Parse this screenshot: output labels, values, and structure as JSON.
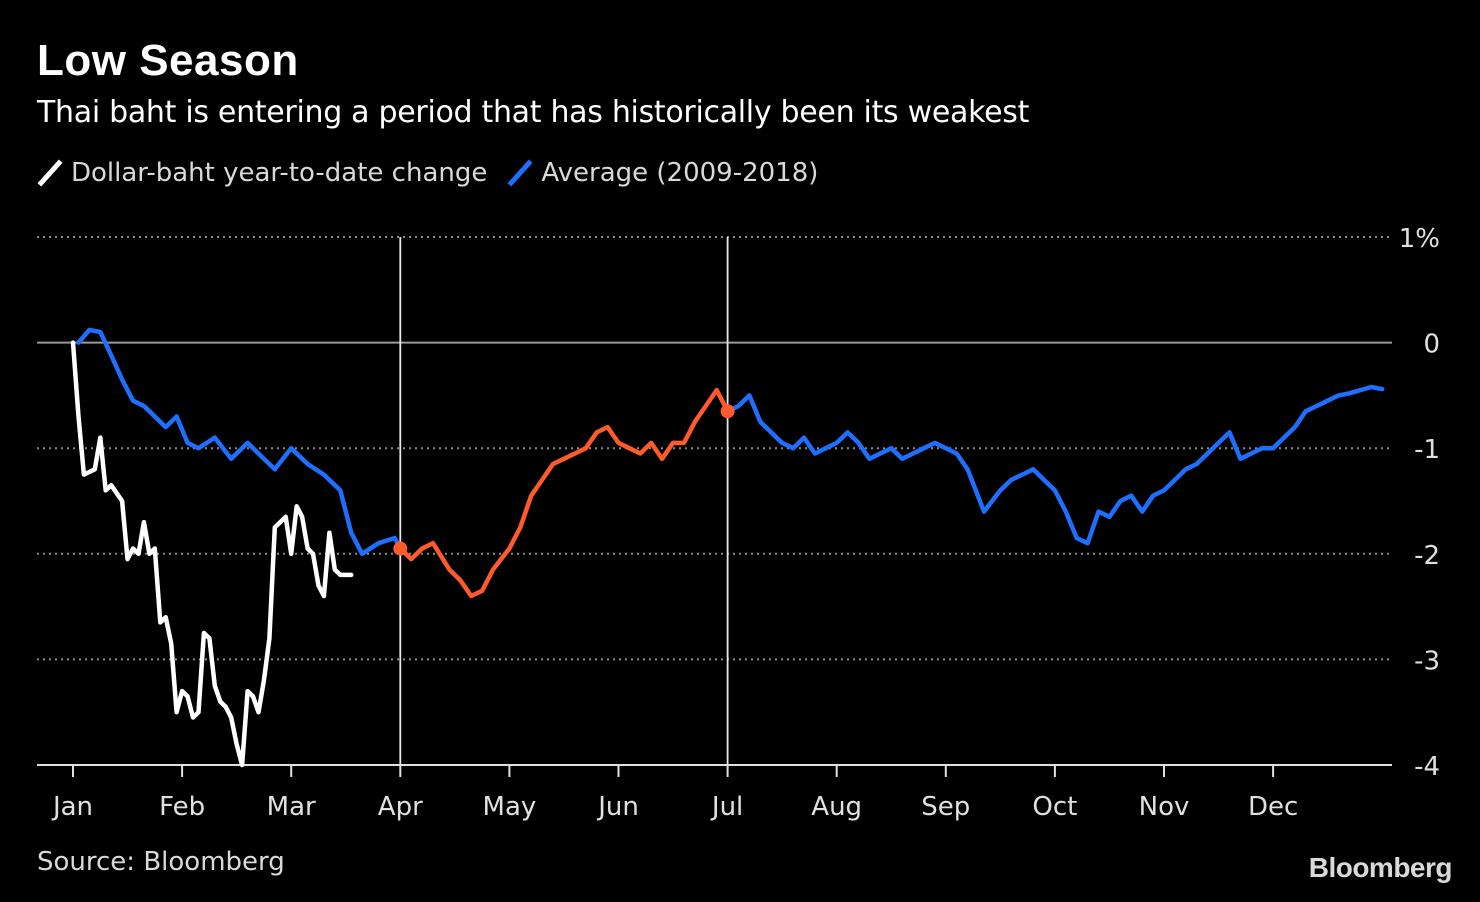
{
  "title": "Low Season",
  "subtitle": "Thai baht is entering a period that has historically been its weakest",
  "legend": [
    {
      "label": "Dollar-baht year-to-date change",
      "color": "#ffffff"
    },
    {
      "label": "Average (2009-2018)",
      "color": "#1f6fff"
    }
  ],
  "source": "Source: Bloomberg",
  "brand": "Bloomberg",
  "colors": {
    "white": "#ffffff",
    "blue": "#1f6fff",
    "orange": "#ff5a2c",
    "grid": "#8a8a8a",
    "zero": "#9a9a9a",
    "axis": "#e0e0e0"
  },
  "chart_data": {
    "type": "line",
    "title": "Low Season",
    "subtitle": "Thai baht is entering a period that has historically been its weakest",
    "x_unit": "month index (0 = Jan 1, 12 = end of Dec)",
    "xlim": [
      0,
      12.25
    ],
    "ylim": [
      -4,
      1
    ],
    "ylabel": "%",
    "x_ticks": [
      {
        "value": 0,
        "label": "Jan"
      },
      {
        "value": 1,
        "label": "Feb"
      },
      {
        "value": 2,
        "label": "Mar"
      },
      {
        "value": 3,
        "label": "Apr"
      },
      {
        "value": 4,
        "label": "May"
      },
      {
        "value": 5,
        "label": "Jun"
      },
      {
        "value": 6,
        "label": "Jul"
      },
      {
        "value": 7,
        "label": "Aug"
      },
      {
        "value": 8,
        "label": "Sep"
      },
      {
        "value": 9,
        "label": "Oct"
      },
      {
        "value": 10,
        "label": "Nov"
      },
      {
        "value": 11,
        "label": "Dec"
      }
    ],
    "y_ticks": [
      {
        "value": 1,
        "label": "1%"
      },
      {
        "value": 0,
        "label": "0"
      },
      {
        "value": -1,
        "label": "-1"
      },
      {
        "value": -2,
        "label": "-2"
      },
      {
        "value": -3,
        "label": "-3"
      },
      {
        "value": -4,
        "label": "-4"
      }
    ],
    "markers_x": [
      3.0,
      6.0
    ],
    "series": [
      {
        "name": "Average (2009-2018)",
        "color": "#1f6fff",
        "segments": [
          {
            "color": "#1f6fff",
            "x": [
              0.05,
              0.15,
              0.25,
              0.35,
              0.45,
              0.55,
              0.65,
              0.75,
              0.85,
              0.95,
              1.05,
              1.15,
              1.3,
              1.45,
              1.6,
              1.75,
              1.85,
              2.0,
              2.15,
              2.3,
              2.45,
              2.55,
              2.65,
              2.8,
              2.95,
              3.0
            ],
            "y": [
              0.0,
              0.12,
              0.1,
              -0.12,
              -0.35,
              -0.55,
              -0.6,
              -0.7,
              -0.8,
              -0.7,
              -0.95,
              -1.0,
              -0.9,
              -1.1,
              -0.95,
              -1.1,
              -1.2,
              -1.0,
              -1.15,
              -1.25,
              -1.4,
              -1.8,
              -2.0,
              -1.9,
              -1.85,
              -1.95
            ]
          },
          {
            "color": "#ff5a2c",
            "x": [
              3.0,
              3.1,
              3.2,
              3.3,
              3.45,
              3.55,
              3.65,
              3.75,
              3.85,
              4.0,
              4.1,
              4.2,
              4.3,
              4.4,
              4.5,
              4.6,
              4.7,
              4.8,
              4.9,
              5.0,
              5.1,
              5.2,
              5.3,
              5.4,
              5.5,
              5.6,
              5.7,
              5.8,
              5.9,
              6.0
            ],
            "y": [
              -1.95,
              -2.05,
              -1.95,
              -1.9,
              -2.15,
              -2.25,
              -2.4,
              -2.35,
              -2.15,
              -1.95,
              -1.75,
              -1.45,
              -1.3,
              -1.15,
              -1.1,
              -1.05,
              -1.0,
              -0.85,
              -0.8,
              -0.95,
              -1.0,
              -1.05,
              -0.95,
              -1.1,
              -0.95,
              -0.95,
              -0.75,
              -0.6,
              -0.45,
              -0.65
            ]
          },
          {
            "color": "#1f6fff",
            "x": [
              6.0,
              6.1,
              6.2,
              6.3,
              6.4,
              6.5,
              6.6,
              6.7,
              6.8,
              6.9,
              7.0,
              7.1,
              7.2,
              7.3,
              7.4,
              7.5,
              7.6,
              7.7,
              7.8,
              7.9,
              8.0,
              8.1,
              8.2,
              8.35,
              8.5,
              8.6,
              8.7,
              8.8,
              8.9,
              9.0,
              9.1,
              9.2,
              9.3,
              9.4,
              9.5,
              9.6,
              9.7,
              9.8,
              9.9,
              10.0,
              10.1,
              10.2,
              10.3,
              10.4,
              10.5,
              10.6,
              10.7,
              10.8,
              10.9,
              11.0,
              11.1,
              11.2,
              11.3,
              11.4,
              11.5,
              11.6,
              11.7,
              11.8,
              11.9,
              12.0
            ],
            "y": [
              -0.65,
              -0.6,
              -0.5,
              -0.75,
              -0.85,
              -0.95,
              -1.0,
              -0.9,
              -1.05,
              -1.0,
              -0.95,
              -0.85,
              -0.95,
              -1.1,
              -1.05,
              -1.0,
              -1.1,
              -1.05,
              -1.0,
              -0.95,
              -1.0,
              -1.05,
              -1.2,
              -1.6,
              -1.4,
              -1.3,
              -1.25,
              -1.2,
              -1.3,
              -1.4,
              -1.6,
              -1.85,
              -1.9,
              -1.6,
              -1.65,
              -1.5,
              -1.45,
              -1.6,
              -1.45,
              -1.4,
              -1.3,
              -1.2,
              -1.15,
              -1.05,
              -0.95,
              -0.85,
              -1.1,
              -1.05,
              -1.0,
              -1.0,
              -0.9,
              -0.8,
              -0.65,
              -0.6,
              -0.55,
              -0.5,
              -0.48,
              -0.45,
              -0.42,
              -0.44
            ]
          }
        ]
      },
      {
        "name": "Dollar-baht year-to-date change",
        "color": "#ffffff",
        "x": [
          0.0,
          0.05,
          0.1,
          0.2,
          0.25,
          0.3,
          0.35,
          0.45,
          0.5,
          0.55,
          0.6,
          0.65,
          0.7,
          0.75,
          0.8,
          0.85,
          0.9,
          0.95,
          1.0,
          1.05,
          1.1,
          1.15,
          1.2,
          1.25,
          1.3,
          1.35,
          1.4,
          1.45,
          1.5,
          1.55,
          1.6,
          1.65,
          1.7,
          1.75,
          1.8,
          1.85,
          1.9,
          1.95,
          2.0,
          2.05,
          2.1,
          2.15,
          2.2,
          2.25,
          2.3,
          2.35,
          2.4,
          2.45,
          2.5,
          2.55
        ],
        "y": [
          0.0,
          -0.7,
          -1.25,
          -1.2,
          -0.9,
          -1.4,
          -1.35,
          -1.5,
          -2.05,
          -1.95,
          -2.0,
          -1.7,
          -2.0,
          -1.95,
          -2.65,
          -2.6,
          -2.85,
          -3.5,
          -3.3,
          -3.35,
          -3.55,
          -3.5,
          -2.75,
          -2.8,
          -3.25,
          -3.4,
          -3.45,
          -3.55,
          -3.8,
          -4.0,
          -3.3,
          -3.35,
          -3.5,
          -3.2,
          -2.8,
          -1.75,
          -1.7,
          -1.65,
          -2.0,
          -1.55,
          -1.65,
          -1.95,
          -2.0,
          -2.3,
          -2.4,
          -1.8,
          -2.15,
          -2.2,
          -2.2,
          -2.2
        ]
      }
    ],
    "highlight_points": [
      {
        "x": 3.0,
        "y": -1.95,
        "color": "#ff5a2c"
      },
      {
        "x": 6.0,
        "y": -0.65,
        "color": "#ff5a2c"
      }
    ]
  }
}
